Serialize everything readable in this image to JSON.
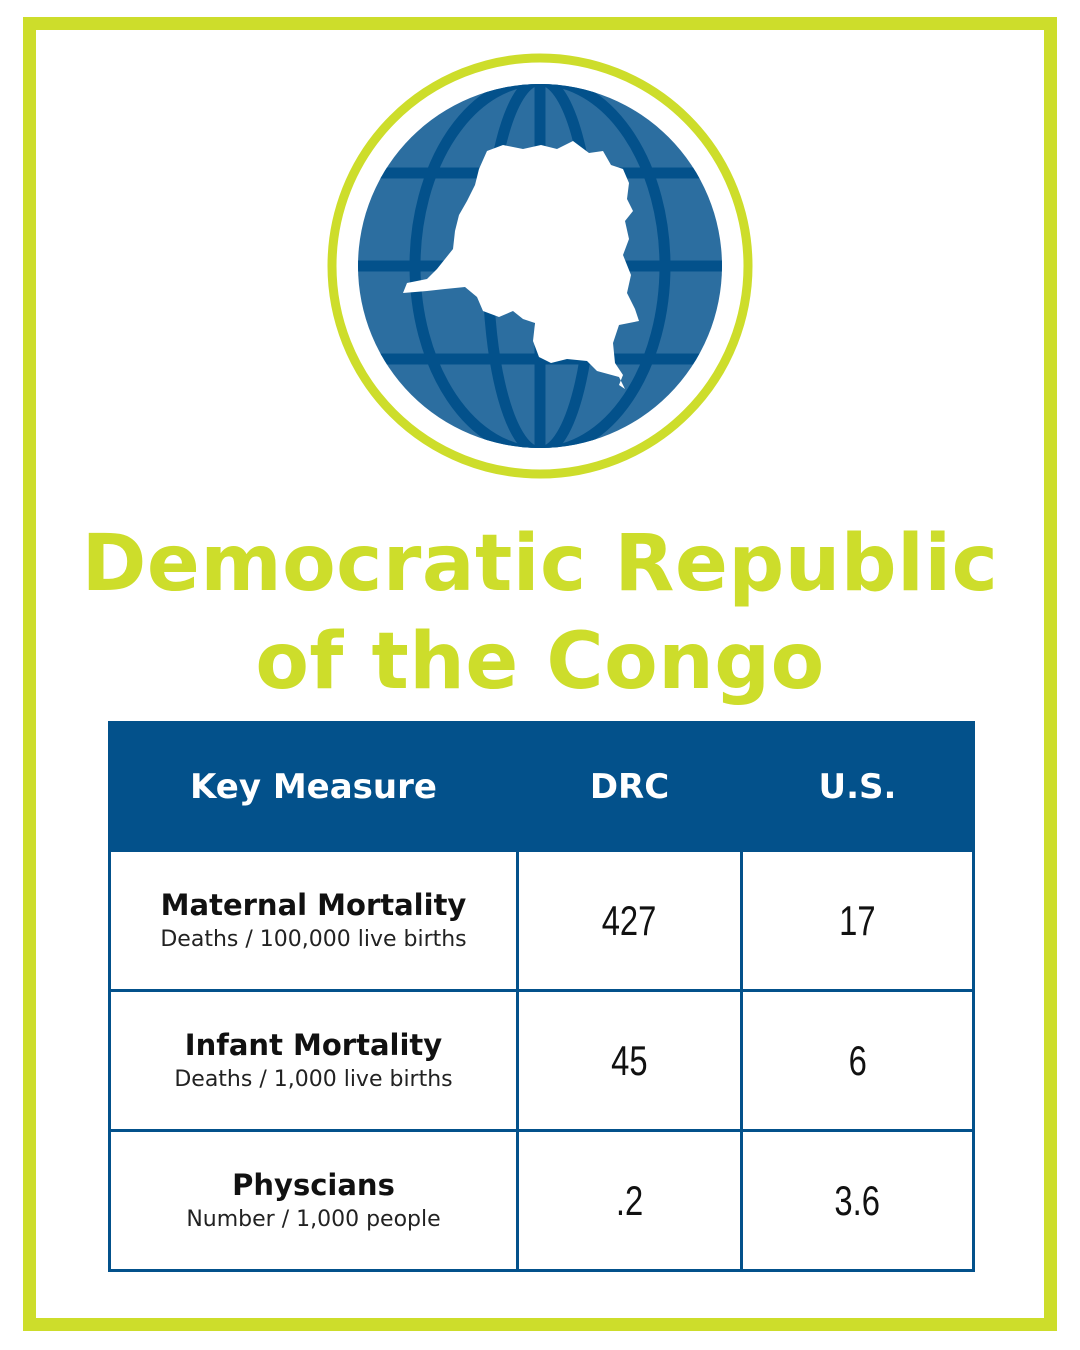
{
  "title": {
    "line1": "Democratic Republic",
    "line2": "of the Congo"
  },
  "colors": {
    "accent": "#cddd2b",
    "navy": "#03518b",
    "globe": "#2c6ea0"
  },
  "emblem": {
    "icon": "globe-with-drc-map-icon"
  },
  "table": {
    "headers": [
      "Key Measure",
      "DRC",
      "U.S."
    ],
    "rows": [
      {
        "measure": "Maternal Mortality",
        "unit": "Deaths / 100,000 live births",
        "drc": "427",
        "us": "17"
      },
      {
        "measure": "Infant Mortality",
        "unit": "Deaths / 1,000 live births",
        "drc": "45",
        "us": "6"
      },
      {
        "measure": "Physcians",
        "unit": "Number / 1,000 people",
        "drc": ".2",
        "us": "3.6"
      }
    ]
  }
}
